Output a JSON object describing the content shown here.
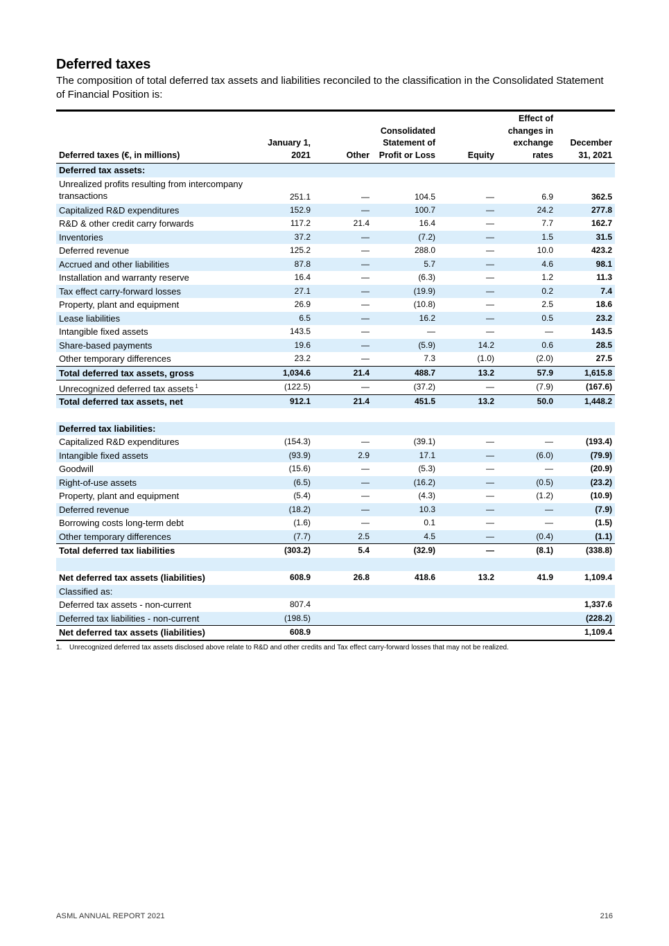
{
  "title": "Deferred taxes",
  "intro": "The composition of total deferred tax assets and liabilities reconciled to the classification in the Consolidated Statement of Financial Position is:",
  "table": {
    "headers": [
      "Deferred taxes (€, in millions)",
      "January 1, 2021",
      "Other",
      "Consolidated Statement of Profit or Loss",
      "Equity",
      "Effect of changes in exchange rates",
      "December 31, 2021"
    ],
    "rows": [
      {
        "label": "Deferred tax assets:",
        "cells": [
          "",
          "",
          "",
          "",
          "",
          ""
        ],
        "style": "section"
      },
      {
        "label": "Unrealized profits resulting from intercompany transactions",
        "cells": [
          "251.1",
          "—",
          "104.5",
          "—",
          "6.9",
          "362.5"
        ]
      },
      {
        "label": "Capitalized R&D expenditures",
        "cells": [
          "152.9",
          "—",
          "100.7",
          "—",
          "24.2",
          "277.8"
        ]
      },
      {
        "label": "R&D & other credit carry forwards",
        "cells": [
          "117.2",
          "21.4",
          "16.4",
          "—",
          "7.7",
          "162.7"
        ]
      },
      {
        "label": "Inventories",
        "cells": [
          "37.2",
          "—",
          "(7.2)",
          "—",
          "1.5",
          "31.5"
        ]
      },
      {
        "label": "Deferred revenue",
        "cells": [
          "125.2",
          "—",
          "288.0",
          "—",
          "10.0",
          "423.2"
        ]
      },
      {
        "label": "Accrued and other liabilities",
        "cells": [
          "87.8",
          "—",
          "5.7",
          "—",
          "4.6",
          "98.1"
        ]
      },
      {
        "label": "Installation and warranty reserve",
        "cells": [
          "16.4",
          "—",
          "(6.3)",
          "—",
          "1.2",
          "11.3"
        ]
      },
      {
        "label": "Tax effect carry-forward losses",
        "cells": [
          "27.1",
          "—",
          "(19.9)",
          "—",
          "0.2",
          "7.4"
        ]
      },
      {
        "label": "Property, plant and equipment",
        "cells": [
          "26.9",
          "—",
          "(10.8)",
          "—",
          "2.5",
          "18.6"
        ]
      },
      {
        "label": "Lease liabilities",
        "cells": [
          "6.5",
          "—",
          "16.2",
          "—",
          "0.5",
          "23.2"
        ]
      },
      {
        "label": "Intangible fixed assets",
        "cells": [
          "143.5",
          "—",
          "—",
          "—",
          "—",
          "143.5"
        ]
      },
      {
        "label": "Share-based payments",
        "cells": [
          "19.6",
          "—",
          "(5.9)",
          "14.2",
          "0.6",
          "28.5"
        ]
      },
      {
        "label": "Other temporary differences",
        "cells": [
          "23.2",
          "—",
          "7.3",
          "(1.0)",
          "(2.0)",
          "27.5"
        ]
      },
      {
        "label": "Total deferred tax assets, gross",
        "cells": [
          "1,034.6",
          "21.4",
          "488.7",
          "13.2",
          "57.9",
          "1,615.8"
        ],
        "style": "total"
      },
      {
        "label": "Unrecognized deferred tax assets",
        "sup": "1",
        "cells": [
          "(122.5)",
          "—",
          "(37.2)",
          "—",
          "(7.9)",
          "(167.6)"
        ]
      },
      {
        "label": "Total deferred tax assets, net",
        "cells": [
          "912.1",
          "21.4",
          "451.5",
          "13.2",
          "50.0",
          "1,448.2"
        ],
        "style": "total"
      },
      {
        "label": "",
        "cells": [
          "",
          "",
          "",
          "",
          "",
          ""
        ],
        "style": "blank"
      },
      {
        "label": "Deferred tax liabilities:",
        "cells": [
          "",
          "",
          "",
          "",
          "",
          ""
        ],
        "style": "section"
      },
      {
        "label": "Capitalized R&D expenditures",
        "cells": [
          "(154.3)",
          "—",
          "(39.1)",
          "—",
          "—",
          "(193.4)"
        ]
      },
      {
        "label": "Intangible fixed assets",
        "cells": [
          "(93.9)",
          "2.9",
          "17.1",
          "—",
          "(6.0)",
          "(79.9)"
        ]
      },
      {
        "label": "Goodwill",
        "cells": [
          "(15.6)",
          "—",
          "(5.3)",
          "—",
          "—",
          "(20.9)"
        ]
      },
      {
        "label": "Right-of-use assets",
        "cells": [
          "(6.5)",
          "—",
          "(16.2)",
          "—",
          "(0.5)",
          "(23.2)"
        ]
      },
      {
        "label": "Property, plant and equipment",
        "cells": [
          "(5.4)",
          "—",
          "(4.3)",
          "—",
          "(1.2)",
          "(10.9)"
        ]
      },
      {
        "label": "Deferred revenue",
        "cells": [
          "(18.2)",
          "—",
          "10.3",
          "—",
          "—",
          "(7.9)"
        ]
      },
      {
        "label": "Borrowing costs long-term debt",
        "cells": [
          "(1.6)",
          "—",
          "0.1",
          "—",
          "—",
          "(1.5)"
        ]
      },
      {
        "label": "Other temporary differences",
        "cells": [
          "(7.7)",
          "2.5",
          "4.5",
          "—",
          "(0.4)",
          "(1.1)"
        ]
      },
      {
        "label": "Total deferred tax liabilities",
        "cells": [
          "(303.2)",
          "5.4",
          "(32.9)",
          "—",
          "(8.1)",
          "(338.8)"
        ],
        "style": "total"
      },
      {
        "label": "",
        "cells": [
          "",
          "",
          "",
          "",
          "",
          ""
        ],
        "style": "blank"
      },
      {
        "label": "Net deferred tax assets (liabilities)",
        "cells": [
          "608.9",
          "26.8",
          "418.6",
          "13.2",
          "41.9",
          "1,109.4"
        ],
        "style": "net"
      },
      {
        "label": "Classified as:",
        "cells": [
          "",
          "",
          "",
          "",
          "",
          ""
        ]
      },
      {
        "label": "Deferred tax assets - non-current",
        "cells": [
          "807.4",
          "",
          "",
          "",
          "",
          "1,337.6"
        ]
      },
      {
        "label": "Deferred tax liabilities - non-current",
        "cells": [
          "(198.5)",
          "",
          "",
          "",
          "",
          "(228.2)"
        ]
      },
      {
        "label": "Net deferred tax assets (liabilities)",
        "cells": [
          "608.9",
          "",
          "",
          "",
          "",
          "1,109.4"
        ],
        "style": "total"
      }
    ]
  },
  "footnote": {
    "number": "1.",
    "text": "Unrecognized deferred tax assets disclosed above relate to R&D and other credits and Tax effect carry-forward losses that may not be realized."
  },
  "footer": {
    "left": "ASML ANNUAL REPORT 2021",
    "page": "216"
  },
  "colors": {
    "row_shade": "#dbeefb",
    "text": "#000000"
  }
}
